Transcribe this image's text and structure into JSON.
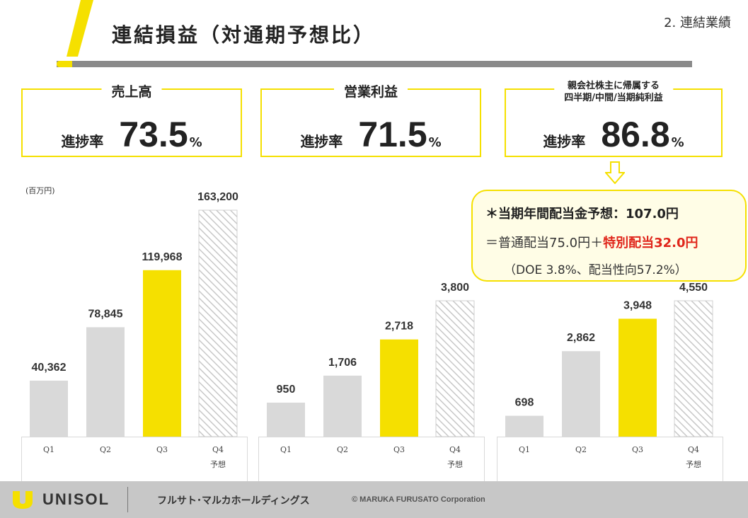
{
  "header": {
    "title": "連結損益（対通期予想比）",
    "section": "2. 連結業績"
  },
  "kpis": [
    {
      "label": "売上高",
      "caption": "進捗率",
      "value": "73.5",
      "unit": "%"
    },
    {
      "label": "営業利益",
      "caption": "進捗率",
      "value": "71.5",
      "unit": "%"
    },
    {
      "label_line1": "親会社株主に帰属する",
      "label_line2": "四半期/中間/当期純利益",
      "caption": "進捗率",
      "value": "86.8",
      "unit": "%"
    }
  ],
  "callout": {
    "line1": "＊当期年間配当金予想：107.0円",
    "line2_prefix": "＝普通配当75.0円＋",
    "line2_highlight": "特別配当32.0円",
    "line3": "（DOE 3.8%、配当性向57.2%）"
  },
  "unit_label": "(百万円)",
  "colors": {
    "accent": "#f5e000",
    "bar_actual": "#d9d9d9",
    "highlight_red": "#e0261b",
    "rule": "#8a8a8a",
    "footer_bg": "#c7c7c7"
  },
  "chart_data": [
    {
      "type": "bar",
      "title": "売上高",
      "categories": [
        "Q1",
        "Q2",
        "Q3",
        "Q4"
      ],
      "category_sublabels": [
        "",
        "",
        "",
        "予想"
      ],
      "values": [
        40362,
        78845,
        119968,
        163200
      ],
      "value_labels": [
        "40,362",
        "78,845",
        "119,968",
        "163,200"
      ],
      "bar_styles": [
        "actual",
        "actual",
        "highlight",
        "forecast"
      ],
      "ylim": [
        0,
        163200
      ]
    },
    {
      "type": "bar",
      "title": "営業利益",
      "categories": [
        "Q1",
        "Q2",
        "Q3",
        "Q4"
      ],
      "category_sublabels": [
        "",
        "",
        "",
        "予想"
      ],
      "values": [
        950,
        1706,
        2718,
        3800
      ],
      "value_labels": [
        "950",
        "1,706",
        "2,718",
        "3,800"
      ],
      "bar_styles": [
        "actual",
        "actual",
        "highlight",
        "forecast"
      ],
      "ylim": [
        0,
        3800
      ]
    },
    {
      "type": "bar",
      "title": "親会社株主に帰属する四半期/中間/当期純利益",
      "categories": [
        "Q1",
        "Q2",
        "Q3",
        "Q4"
      ],
      "category_sublabels": [
        "",
        "",
        "",
        "予想"
      ],
      "values": [
        698,
        2862,
        3948,
        4550
      ],
      "value_labels": [
        "698",
        "2,862",
        "3,948",
        "4,550"
      ],
      "bar_styles": [
        "actual",
        "actual",
        "highlight",
        "forecast"
      ],
      "ylim": [
        0,
        4550
      ]
    }
  ],
  "footer": {
    "brand": "UNISOL",
    "company": "フルサト･マルカホールディングス",
    "copyright": "© MARUKA FURUSATO Corporation"
  }
}
